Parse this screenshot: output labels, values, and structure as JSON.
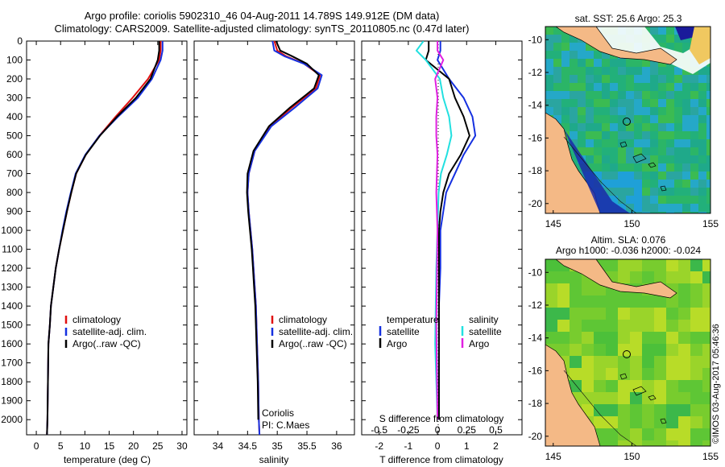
{
  "title_line1": "Argo profile: coriolis 5902310_46 04-Aug-2011 14.789S 149.912E (DM data)",
  "title_line2": "Climatology: CARS2009. Satellite-adjusted climatology: synTS_20110805.nc (0.47d later)",
  "colors": {
    "climatology": "#e01010",
    "satellite": "#1530e0",
    "argo": "#000000",
    "satellite_sal": "#22e0e0",
    "argo_sal": "#e020e0"
  },
  "legend": {
    "climatology": "climatology",
    "satellite": "satellite-adj. clim.",
    "argo": "Argo(..raw -QC)"
  },
  "coriolis": {
    "line1": "Coriolis",
    "line2": "PI: C.Maes"
  },
  "diff_legend": {
    "temp_title": "temperature",
    "sal_title": "salinity",
    "satellite": "satellite",
    "argo": "Argo"
  },
  "map_sst": {
    "title": "sat. SST: 25.6  Argo: 25.3"
  },
  "map_sla": {
    "title1": "Altim. SLA: 0.076",
    "title2": "Argo h1000: -0.036 h2000: -0.024"
  },
  "stamp": "©IMOS 03-Aug-2017 05:46:36",
  "chart_data": [
    {
      "type": "line",
      "name": "temperature",
      "xlabel": "temperature (deg C)",
      "ylabel": "",
      "xlim": [
        -2,
        31
      ],
      "ylim": [
        2080,
        0
      ],
      "xticks": [
        0,
        5,
        10,
        15,
        20,
        25,
        30
      ],
      "yticks": [
        0,
        100,
        200,
        300,
        400,
        500,
        600,
        700,
        800,
        900,
        1000,
        1100,
        1200,
        1300,
        1400,
        1500,
        1600,
        1700,
        1800,
        1900,
        2000
      ],
      "series": [
        {
          "name": "climatology",
          "color_key": "climatology",
          "x": [
            25.6,
            25.6,
            25.3,
            23.0,
            19.8,
            16.3,
            13.0,
            10.2,
            8.2,
            7.2,
            6.3,
            5.5,
            4.7,
            4.0,
            3.5,
            3.0,
            2.8,
            2.5,
            2.4,
            2.3,
            2.2
          ],
          "y": [
            0,
            50,
            100,
            200,
            300,
            400,
            500,
            600,
            700,
            800,
            900,
            1000,
            1100,
            1200,
            1300,
            1400,
            1500,
            1600,
            1800,
            2000,
            2080
          ]
        },
        {
          "name": "satellite-adj. clim.",
          "color_key": "satellite",
          "x": [
            26.0,
            26.0,
            25.6,
            23.8,
            20.9,
            16.8,
            13.0,
            10.1,
            8.1,
            7.1,
            6.2,
            5.4,
            4.7,
            4.0,
            3.5,
            3.0,
            2.8,
            2.5,
            2.4,
            2.3,
            2.2
          ],
          "y": [
            0,
            50,
            100,
            200,
            300,
            400,
            500,
            600,
            700,
            800,
            900,
            1000,
            1100,
            1200,
            1300,
            1400,
            1500,
            1600,
            1800,
            2000,
            2080
          ]
        },
        {
          "name": "Argo(..raw -QC)",
          "color_key": "argo",
          "x": [
            25.3,
            25.3,
            25.0,
            23.5,
            20.5,
            16.6,
            13.1,
            10.2,
            8.2,
            7.2,
            6.3,
            5.5,
            4.7,
            4.0,
            3.5,
            3.0,
            2.8,
            2.5,
            2.4,
            2.3,
            2.2
          ],
          "y": [
            0,
            50,
            100,
            200,
            300,
            400,
            500,
            600,
            700,
            800,
            900,
            1000,
            1100,
            1200,
            1300,
            1400,
            1500,
            1600,
            1800,
            2000,
            2080
          ]
        }
      ]
    },
    {
      "type": "line",
      "name": "salinity",
      "xlabel": "salinity",
      "xlim": [
        33.6,
        36.3
      ],
      "ylim": [
        2080,
        0
      ],
      "xticks": [
        34,
        34.5,
        35,
        35.5,
        36
      ],
      "series": [
        {
          "name": "climatology",
          "color_key": "climatology",
          "x": [
            34.95,
            35.0,
            35.15,
            35.45,
            35.72,
            35.65,
            35.25,
            34.88,
            34.62,
            34.52,
            34.5,
            34.52,
            34.55,
            34.58,
            34.6,
            34.62,
            34.64,
            34.66,
            34.68,
            34.69,
            34.7
          ],
          "y": [
            0,
            50,
            80,
            120,
            180,
            250,
            350,
            450,
            580,
            700,
            800,
            900,
            1000,
            1100,
            1200,
            1300,
            1400,
            1600,
            1800,
            2000,
            2080
          ]
        },
        {
          "name": "satellite-adj. clim.",
          "color_key": "satellite",
          "x": [
            34.92,
            34.95,
            35.12,
            35.45,
            35.75,
            35.68,
            35.3,
            34.9,
            34.62,
            34.52,
            34.5,
            34.52,
            34.55,
            34.58,
            34.6,
            34.62,
            34.64,
            34.66,
            34.68,
            34.69,
            34.7
          ],
          "y": [
            0,
            50,
            80,
            120,
            180,
            250,
            350,
            450,
            580,
            700,
            800,
            900,
            1000,
            1100,
            1200,
            1300,
            1400,
            1600,
            1800,
            2000,
            2080
          ]
        },
        {
          "name": "Argo(..raw -QC)",
          "color_key": "argo",
          "x": [
            34.98,
            35.05,
            35.25,
            35.5,
            35.7,
            35.62,
            35.22,
            34.86,
            34.6,
            34.5,
            34.49,
            34.51,
            34.54,
            34.57,
            34.59,
            34.61,
            34.63,
            34.65,
            34.67,
            34.68
          ],
          "y": [
            0,
            50,
            80,
            120,
            180,
            250,
            350,
            450,
            580,
            700,
            800,
            900,
            1000,
            1100,
            1200,
            1300,
            1400,
            1600,
            1800,
            2000
          ]
        }
      ]
    },
    {
      "type": "line",
      "name": "difference from climatology",
      "xlabel": "T difference from climatology",
      "x2label": "S difference from climatology",
      "xlim": [
        -2.6,
        2.9
      ],
      "ylim": [
        2080,
        0
      ],
      "xticks": [
        -2,
        -1,
        0,
        1,
        2
      ],
      "x2ticks": [
        -0.5,
        -0.25,
        0,
        0.25,
        0.5
      ],
      "series": [
        {
          "name": "satellite",
          "quantity": "temperature",
          "color_key": "satellite",
          "x": [
            0.1,
            0.1,
            0.0,
            0.4,
            0.9,
            1.2,
            1.3,
            0.9,
            0.6,
            0.3,
            0.2,
            0.1,
            0.1,
            0.05,
            0.05,
            0.05,
            0.05
          ],
          "y": [
            0,
            50,
            100,
            200,
            300,
            400,
            500,
            600,
            700,
            800,
            900,
            1000,
            1200,
            1400,
            1600,
            1800,
            2000
          ]
        },
        {
          "name": "Argo",
          "quantity": "temperature",
          "color_key": "argo",
          "x": [
            -0.3,
            -0.3,
            -0.4,
            0.4,
            0.6,
            0.9,
            1.1,
            0.8,
            0.4,
            0.2,
            0.1,
            0.05,
            0.05,
            0.05,
            0.05
          ],
          "y": [
            0,
            50,
            100,
            200,
            300,
            400,
            500,
            600,
            700,
            800,
            900,
            1000,
            1200,
            1500,
            2000
          ]
        },
        {
          "name": "satellite",
          "quantity": "salinity",
          "color_key": "satellite_sal",
          "x": [
            -0.12,
            -0.18,
            -0.1,
            0.02,
            0.05,
            0.1,
            0.12,
            0.08,
            0.03,
            0.01,
            0.0,
            -0.01,
            -0.02,
            0.0
          ],
          "y": [
            0,
            50,
            100,
            200,
            300,
            400,
            500,
            600,
            700,
            800,
            1000,
            1200,
            1600,
            2000
          ]
        },
        {
          "name": "Argo",
          "quantity": "salinity",
          "color_key": "argo_sal",
          "x": [
            0.0,
            0.0,
            0.05,
            -0.02,
            0.0,
            -0.01,
            -0.01,
            0.0,
            -0.01,
            0.0,
            -0.01,
            0.0
          ],
          "y": [
            0,
            50,
            100,
            200,
            300,
            400,
            500,
            600,
            800,
            1000,
            1500,
            2000
          ]
        }
      ]
    },
    {
      "type": "heatmap",
      "name": "sat. SST map",
      "xlim": [
        144.5,
        155
      ],
      "ylim": [
        -20.6,
        -9.2
      ],
      "xticks": [
        145,
        150,
        155
      ],
      "yticks": [
        -10,
        -12,
        -14,
        -16,
        -18,
        -20
      ],
      "profile_location": {
        "lon": 149.912,
        "lat": -14.789
      }
    },
    {
      "type": "heatmap",
      "name": "Altim. SLA map",
      "xlim": [
        144.5,
        155
      ],
      "ylim": [
        -20.6,
        -9.2
      ],
      "xticks": [
        145,
        150,
        155
      ],
      "yticks": [
        -10,
        -12,
        -14,
        -16,
        -18,
        -20
      ],
      "profile_location": {
        "lon": 149.912,
        "lat": -14.789
      }
    }
  ]
}
